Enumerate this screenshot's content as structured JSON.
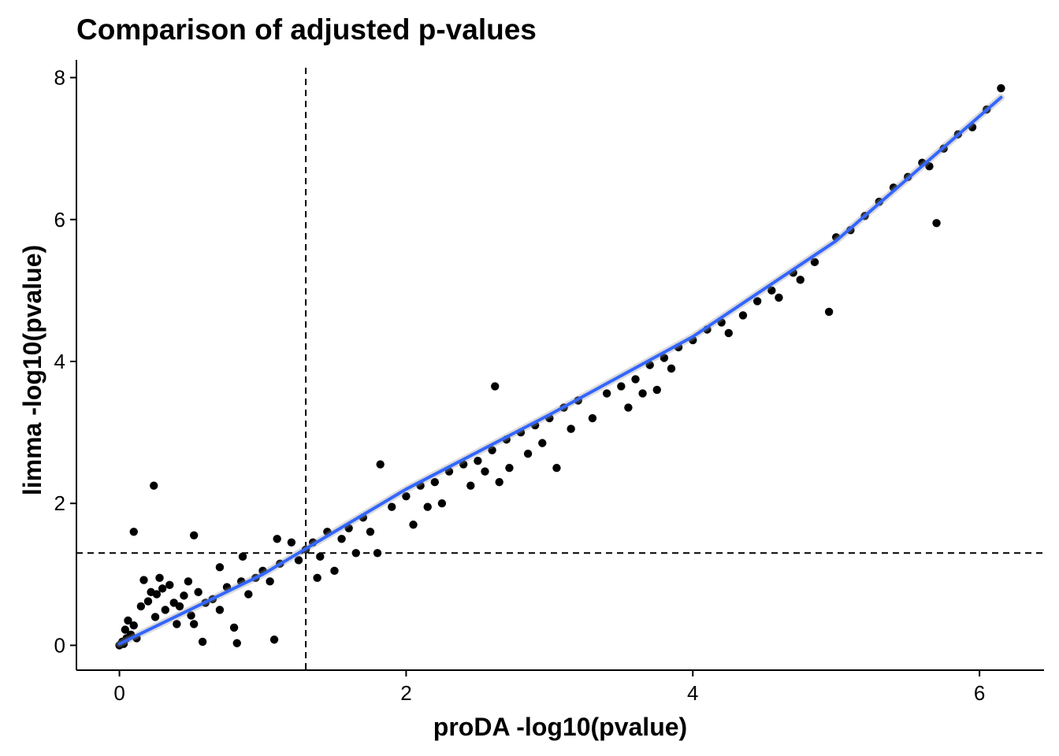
{
  "chart_data": {
    "type": "scatter",
    "title": "Comparison of adjusted p-values",
    "xlabel": "proDA -log10(pvalue)",
    "ylabel": "limma -log10(pvalue)",
    "xlim": [
      -0.3,
      6.45
    ],
    "ylim": [
      -0.35,
      8.25
    ],
    "x_ticks": [
      0,
      2,
      4,
      6
    ],
    "y_ticks": [
      0,
      2,
      4,
      6,
      8
    ],
    "x_tick_labels": [
      "0",
      "2",
      "4",
      "6"
    ],
    "y_tick_labels": [
      "0",
      "2",
      "4",
      "6",
      "8"
    ],
    "grid": false,
    "legend": "none",
    "reference_lines": [
      {
        "orientation": "vertical",
        "x": 1.3,
        "style": "dashed"
      },
      {
        "orientation": "horizontal",
        "y": 1.3,
        "style": "dashed"
      }
    ],
    "fit_line": {
      "type": "smooth",
      "color": "#3366ff",
      "points": [
        [
          0,
          0.02
        ],
        [
          1,
          1.0
        ],
        [
          2,
          2.2
        ],
        [
          3,
          3.25
        ],
        [
          4,
          4.35
        ],
        [
          5,
          5.7
        ],
        [
          6.15,
          7.72
        ]
      ]
    },
    "point_color": "#000000",
    "series": [
      {
        "points": [
          [
            0.0,
            0.0
          ],
          [
            0.02,
            0.05
          ],
          [
            0.03,
            0.02
          ],
          [
            0.05,
            0.1
          ],
          [
            0.04,
            0.22
          ],
          [
            0.06,
            0.35
          ],
          [
            0.08,
            0.15
          ],
          [
            0.1,
            0.28
          ],
          [
            0.12,
            0.1
          ],
          [
            0.1,
            1.6
          ],
          [
            0.15,
            0.55
          ],
          [
            0.17,
            0.92
          ],
          [
            0.2,
            0.62
          ],
          [
            0.22,
            0.75
          ],
          [
            0.24,
            2.25
          ],
          [
            0.25,
            0.4
          ],
          [
            0.26,
            0.72
          ],
          [
            0.28,
            0.95
          ],
          [
            0.3,
            0.8
          ],
          [
            0.32,
            0.5
          ],
          [
            0.35,
            0.85
          ],
          [
            0.38,
            0.6
          ],
          [
            0.4,
            0.3
          ],
          [
            0.42,
            0.55
          ],
          [
            0.45,
            0.7
          ],
          [
            0.48,
            0.9
          ],
          [
            0.5,
            0.42
          ],
          [
            0.52,
            0.3
          ],
          [
            0.52,
            1.55
          ],
          [
            0.55,
            0.75
          ],
          [
            0.58,
            0.05
          ],
          [
            0.6,
            0.6
          ],
          [
            0.65,
            0.65
          ],
          [
            0.7,
            0.5
          ],
          [
            0.7,
            1.1
          ],
          [
            0.75,
            0.82
          ],
          [
            0.8,
            0.25
          ],
          [
            0.82,
            0.03
          ],
          [
            0.85,
            0.9
          ],
          [
            0.86,
            1.25
          ],
          [
            0.9,
            0.72
          ],
          [
            0.95,
            0.95
          ],
          [
            1.0,
            1.05
          ],
          [
            1.05,
            0.9
          ],
          [
            1.08,
            0.08
          ],
          [
            1.1,
            1.5
          ],
          [
            1.12,
            1.15
          ],
          [
            1.2,
            1.45
          ],
          [
            1.25,
            1.2
          ],
          [
            1.3,
            1.35
          ],
          [
            1.35,
            1.45
          ],
          [
            1.38,
            0.95
          ],
          [
            1.4,
            1.25
          ],
          [
            1.45,
            1.6
          ],
          [
            1.5,
            1.05
          ],
          [
            1.55,
            1.5
          ],
          [
            1.6,
            1.65
          ],
          [
            1.65,
            1.3
          ],
          [
            1.7,
            1.8
          ],
          [
            1.75,
            1.6
          ],
          [
            1.8,
            1.3
          ],
          [
            1.82,
            2.55
          ],
          [
            1.9,
            1.95
          ],
          [
            2.0,
            2.1
          ],
          [
            2.05,
            1.7
          ],
          [
            2.1,
            2.25
          ],
          [
            2.15,
            1.95
          ],
          [
            2.2,
            2.3
          ],
          [
            2.25,
            2.0
          ],
          [
            2.3,
            2.45
          ],
          [
            2.4,
            2.55
          ],
          [
            2.45,
            2.25
          ],
          [
            2.5,
            2.6
          ],
          [
            2.55,
            2.45
          ],
          [
            2.6,
            2.75
          ],
          [
            2.62,
            3.65
          ],
          [
            2.65,
            2.3
          ],
          [
            2.7,
            2.9
          ],
          [
            2.72,
            2.5
          ],
          [
            2.8,
            3.0
          ],
          [
            2.85,
            2.7
          ],
          [
            2.9,
            3.1
          ],
          [
            2.95,
            2.85
          ],
          [
            3.0,
            3.2
          ],
          [
            3.05,
            2.5
          ],
          [
            3.1,
            3.35
          ],
          [
            3.15,
            3.05
          ],
          [
            3.2,
            3.45
          ],
          [
            3.3,
            3.2
          ],
          [
            3.4,
            3.55
          ],
          [
            3.5,
            3.65
          ],
          [
            3.55,
            3.35
          ],
          [
            3.6,
            3.75
          ],
          [
            3.65,
            3.55
          ],
          [
            3.7,
            3.95
          ],
          [
            3.75,
            3.6
          ],
          [
            3.8,
            4.05
          ],
          [
            3.85,
            3.9
          ],
          [
            3.9,
            4.2
          ],
          [
            4.0,
            4.3
          ],
          [
            4.1,
            4.45
          ],
          [
            4.2,
            4.55
          ],
          [
            4.25,
            4.4
          ],
          [
            4.35,
            4.65
          ],
          [
            4.45,
            4.85
          ],
          [
            4.55,
            5.0
          ],
          [
            4.6,
            4.9
          ],
          [
            4.7,
            5.25
          ],
          [
            4.75,
            5.15
          ],
          [
            4.85,
            5.4
          ],
          [
            4.95,
            4.7
          ],
          [
            5.0,
            5.75
          ],
          [
            5.1,
            5.85
          ],
          [
            5.2,
            6.05
          ],
          [
            5.3,
            6.25
          ],
          [
            5.4,
            6.45
          ],
          [
            5.5,
            6.6
          ],
          [
            5.6,
            6.8
          ],
          [
            5.65,
            6.75
          ],
          [
            5.7,
            5.95
          ],
          [
            5.75,
            7.0
          ],
          [
            5.85,
            7.2
          ],
          [
            5.95,
            7.3
          ],
          [
            6.05,
            7.55
          ],
          [
            6.15,
            7.85
          ]
        ]
      }
    ]
  }
}
